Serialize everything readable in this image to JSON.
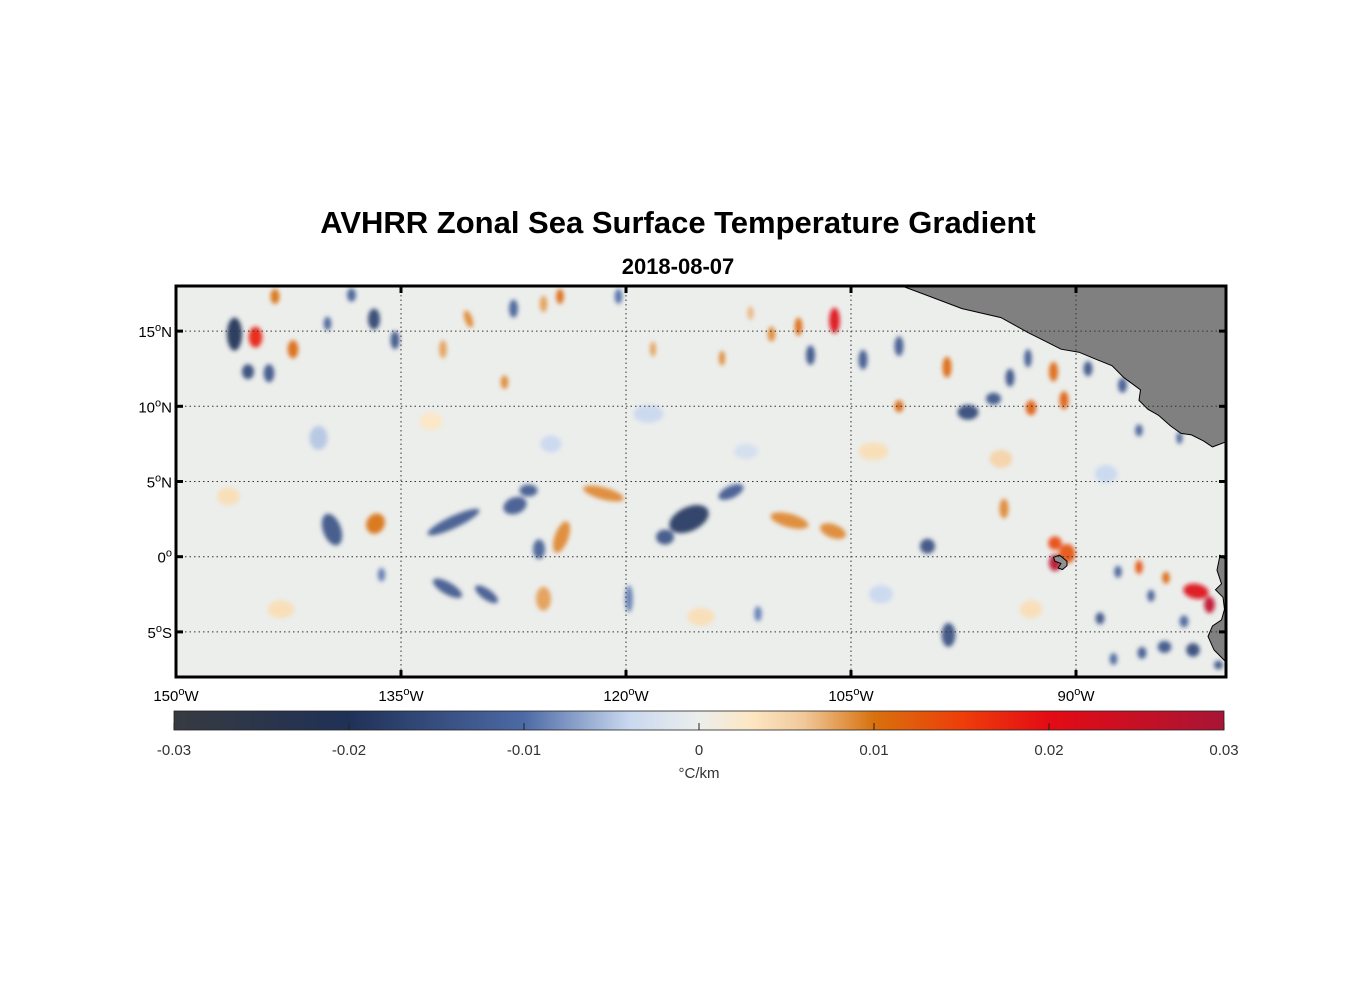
{
  "chart_data": {
    "type": "heatmap",
    "title": "AVHRR Zonal Sea Surface Temperature Gradient",
    "subtitle": "2018-08-07",
    "map": {
      "lon_range": [
        -150,
        -80
      ],
      "lat_range": [
        -8,
        18
      ],
      "x_ticks": [
        {
          "value": -150,
          "label": "150",
          "sup": "o",
          "hemi": "W"
        },
        {
          "value": -135,
          "label": "135",
          "sup": "o",
          "hemi": "W"
        },
        {
          "value": -120,
          "label": "120",
          "sup": "o",
          "hemi": "W"
        },
        {
          "value": -105,
          "label": "105",
          "sup": "o",
          "hemi": "W"
        },
        {
          "value": -90,
          "label": "90",
          "sup": "o",
          "hemi": "W"
        }
      ],
      "y_ticks": [
        {
          "value": 15,
          "label": "15",
          "sup": "o",
          "hemi": "N"
        },
        {
          "value": 10,
          "label": "10",
          "sup": "o",
          "hemi": "N"
        },
        {
          "value": 5,
          "label": "5",
          "sup": "o",
          "hemi": "N"
        },
        {
          "value": 0,
          "label": "0",
          "sup": "o",
          "hemi": ""
        },
        {
          "value": -5,
          "label": "5",
          "sup": "o",
          "hemi": "S"
        }
      ],
      "grid": true,
      "land_color": "#808080",
      "land": [
        {
          "name": "central-america",
          "coords": [
            [
              -101.6,
              18
            ],
            [
              -100,
              17.4
            ],
            [
              -97.6,
              16.5
            ],
            [
              -95,
              15.9
            ],
            [
              -93.2,
              14.9
            ],
            [
              -92,
              14.3
            ],
            [
              -91,
              13.8
            ],
            [
              -89.8,
              13.6
            ],
            [
              -88.6,
              13.1
            ],
            [
              -87.6,
              12.7
            ],
            [
              -86.8,
              11.9
            ],
            [
              -85.7,
              11.1
            ],
            [
              -85.8,
              10.4
            ],
            [
              -85.2,
              9.8
            ],
            [
              -84.5,
              9.4
            ],
            [
              -83.7,
              8.7
            ],
            [
              -83,
              8.2
            ],
            [
              -82.3,
              8.1
            ],
            [
              -81.5,
              7.7
            ],
            [
              -80.9,
              7.3
            ],
            [
              -80.1,
              7.6
            ],
            [
              -80,
              7.6
            ],
            [
              -80,
              18
            ]
          ],
          "color": "#808080"
        },
        {
          "name": "ecuador-peru",
          "coords": [
            [
              -80,
              -0.2
            ],
            [
              -80.4,
              0.1
            ],
            [
              -80.6,
              -0.9
            ],
            [
              -80.3,
              -1.8
            ],
            [
              -80.7,
              -2.2
            ],
            [
              -80.2,
              -2.7
            ],
            [
              -80.1,
              -3.5
            ],
            [
              -80.3,
              -4.2
            ],
            [
              -80.9,
              -4.6
            ],
            [
              -81.2,
              -5.3
            ],
            [
              -80.8,
              -6.2
            ],
            [
              -80,
              -7
            ],
            [
              -80,
              -0.2
            ]
          ],
          "color": "#808080"
        },
        {
          "name": "galapagos",
          "coords": [
            [
              -91.5,
              -0.05
            ],
            [
              -91.1,
              0.1
            ],
            [
              -90.6,
              -0.3
            ],
            [
              -90.6,
              -0.6
            ],
            [
              -90.9,
              -0.85
            ],
            [
              -91.2,
              -0.75
            ],
            [
              -91,
              -0.45
            ],
            [
              -91.4,
              -0.3
            ],
            [
              -91.5,
              -0.05
            ]
          ],
          "color": "#909090"
        }
      ]
    },
    "colorbar": {
      "label": "°C/km",
      "min": -0.03,
      "max": 0.03,
      "ticks": [
        {
          "value": -0.03,
          "label": "-0.03"
        },
        {
          "value": -0.02,
          "label": "-0.02"
        },
        {
          "value": -0.01,
          "label": "-0.01"
        },
        {
          "value": 0,
          "label": "0"
        },
        {
          "value": 0.01,
          "label": "0.01"
        },
        {
          "value": 0.02,
          "label": "0.02"
        },
        {
          "value": 0.03,
          "label": "0.03"
        }
      ],
      "colormap": [
        {
          "value": -0.03,
          "color": "#373a40"
        },
        {
          "value": -0.02,
          "color": "#1f3157"
        },
        {
          "value": -0.01,
          "color": "#4d6aa6"
        },
        {
          "value": -0.004,
          "color": "#c9d8ef"
        },
        {
          "value": 0,
          "color": "#eceeec"
        },
        {
          "value": 0.003,
          "color": "#fde7c3"
        },
        {
          "value": 0.006,
          "color": "#f0c89a"
        },
        {
          "value": 0.01,
          "color": "#d8710d"
        },
        {
          "value": 0.015,
          "color": "#ee3e0a"
        },
        {
          "value": 0.02,
          "color": "#e40b14"
        },
        {
          "value": 0.03,
          "color": "#a81535"
        }
      ]
    },
    "features": [
      {
        "lon": -146.1,
        "lat": 14.8,
        "value": -0.02,
        "w": 1.0,
        "h": 2.2,
        "angle": 0
      },
      {
        "lon": -144.7,
        "lat": 14.6,
        "value": 0.018,
        "w": 0.9,
        "h": 1.4,
        "angle": 0
      },
      {
        "lon": -145.2,
        "lat": 12.3,
        "value": -0.016,
        "w": 0.8,
        "h": 1.0,
        "angle": 0
      },
      {
        "lon": -143.8,
        "lat": 12.2,
        "value": -0.014,
        "w": 0.7,
        "h": 1.2,
        "angle": 0
      },
      {
        "lon": -142.2,
        "lat": 13.8,
        "value": 0.011,
        "w": 0.7,
        "h": 1.2,
        "angle": 0
      },
      {
        "lon": -143.4,
        "lat": 17.3,
        "value": 0.01,
        "w": 0.6,
        "h": 1.0,
        "angle": 0
      },
      {
        "lon": -139.9,
        "lat": 15.5,
        "value": -0.012,
        "w": 0.5,
        "h": 0.9,
        "angle": 0
      },
      {
        "lon": -138.3,
        "lat": 17.4,
        "value": -0.012,
        "w": 0.6,
        "h": 0.9,
        "angle": 0
      },
      {
        "lon": -136.8,
        "lat": 15.8,
        "value": -0.017,
        "w": 0.8,
        "h": 1.4,
        "angle": 0
      },
      {
        "lon": -135.4,
        "lat": 14.4,
        "value": -0.014,
        "w": 0.6,
        "h": 1.2,
        "angle": 0
      },
      {
        "lon": -132.2,
        "lat": 13.8,
        "value": 0.008,
        "w": 0.5,
        "h": 1.2,
        "angle": 0
      },
      {
        "lon": -130.5,
        "lat": 15.8,
        "value": 0.009,
        "w": 0.5,
        "h": 1.2,
        "angle": 20
      },
      {
        "lon": -127.5,
        "lat": 16.5,
        "value": -0.012,
        "w": 0.6,
        "h": 1.2,
        "angle": 0
      },
      {
        "lon": -125.5,
        "lat": 16.8,
        "value": 0.008,
        "w": 0.5,
        "h": 1.1,
        "angle": 0
      },
      {
        "lon": -124.4,
        "lat": 17.3,
        "value": 0.011,
        "w": 0.5,
        "h": 1.0,
        "angle": 0
      },
      {
        "lon": -128.1,
        "lat": 11.6,
        "value": 0.009,
        "w": 0.5,
        "h": 0.9,
        "angle": 0
      },
      {
        "lon": -120.5,
        "lat": 17.3,
        "value": -0.01,
        "w": 0.5,
        "h": 1.0,
        "angle": 0
      },
      {
        "lon": -118.2,
        "lat": 13.8,
        "value": 0.008,
        "w": 0.4,
        "h": 1.0,
        "angle": 0
      },
      {
        "lon": -113.6,
        "lat": 13.2,
        "value": 0.009,
        "w": 0.4,
        "h": 1.0,
        "angle": 0
      },
      {
        "lon": -111.7,
        "lat": 16.2,
        "value": 0.007,
        "w": 0.4,
        "h": 0.9,
        "angle": 0
      },
      {
        "lon": -110.3,
        "lat": 14.8,
        "value": 0.009,
        "w": 0.5,
        "h": 1.0,
        "angle": 0
      },
      {
        "lon": -108.5,
        "lat": 15.3,
        "value": 0.011,
        "w": 0.5,
        "h": 1.2,
        "angle": 0
      },
      {
        "lon": -107.7,
        "lat": 13.4,
        "value": -0.014,
        "w": 0.6,
        "h": 1.3,
        "angle": 0
      },
      {
        "lon": -106.1,
        "lat": 15.7,
        "value": 0.021,
        "w": 0.7,
        "h": 1.7,
        "angle": 0
      },
      {
        "lon": -104.2,
        "lat": 13.1,
        "value": -0.013,
        "w": 0.6,
        "h": 1.3,
        "angle": 0
      },
      {
        "lon": -101.8,
        "lat": 14.0,
        "value": -0.013,
        "w": 0.6,
        "h": 1.3,
        "angle": 0
      },
      {
        "lon": -98.6,
        "lat": 12.6,
        "value": 0.011,
        "w": 0.6,
        "h": 1.4,
        "angle": 0
      },
      {
        "lon": -101.8,
        "lat": 10.0,
        "value": 0.011,
        "w": 0.6,
        "h": 0.8,
        "angle": 0
      },
      {
        "lon": -97.2,
        "lat": 9.6,
        "value": -0.016,
        "w": 1.4,
        "h": 1.0,
        "angle": 0
      },
      {
        "lon": -95.5,
        "lat": 10.5,
        "value": -0.014,
        "w": 1.0,
        "h": 0.8,
        "angle": 0
      },
      {
        "lon": -94.4,
        "lat": 11.9,
        "value": -0.014,
        "w": 0.6,
        "h": 1.2,
        "angle": 0
      },
      {
        "lon": -93.2,
        "lat": 13.2,
        "value": -0.013,
        "w": 0.5,
        "h": 1.2,
        "angle": 0
      },
      {
        "lon": -93.0,
        "lat": 9.9,
        "value": 0.012,
        "w": 0.7,
        "h": 1.0,
        "angle": 0
      },
      {
        "lon": -91.5,
        "lat": 12.3,
        "value": 0.011,
        "w": 0.6,
        "h": 1.3,
        "angle": 0
      },
      {
        "lon": -90.8,
        "lat": 10.4,
        "value": 0.012,
        "w": 0.6,
        "h": 1.2,
        "angle": 0
      },
      {
        "lon": -89.2,
        "lat": 12.5,
        "value": -0.014,
        "w": 0.6,
        "h": 1.0,
        "angle": 0
      },
      {
        "lon": -86.9,
        "lat": 11.4,
        "value": -0.013,
        "w": 0.6,
        "h": 1.0,
        "angle": 0
      },
      {
        "lon": -85.8,
        "lat": 8.4,
        "value": -0.012,
        "w": 0.5,
        "h": 0.8,
        "angle": 0
      },
      {
        "lon": -83.1,
        "lat": 7.9,
        "value": -0.013,
        "w": 0.4,
        "h": 0.8,
        "angle": 0
      },
      {
        "lon": -94.8,
        "lat": 3.2,
        "value": 0.009,
        "w": 0.6,
        "h": 1.3,
        "angle": 0
      },
      {
        "lon": -139.6,
        "lat": 1.8,
        "value": -0.014,
        "w": 1.2,
        "h": 2.2,
        "angle": 20
      },
      {
        "lon": -136.7,
        "lat": 2.2,
        "value": 0.01,
        "w": 1.2,
        "h": 1.4,
        "angle": -30
      },
      {
        "lon": -131.5,
        "lat": 2.3,
        "value": -0.013,
        "w": 3.8,
        "h": 0.8,
        "angle": 25
      },
      {
        "lon": -127.4,
        "lat": 3.4,
        "value": -0.013,
        "w": 1.6,
        "h": 1.1,
        "angle": 20
      },
      {
        "lon": -126.5,
        "lat": 4.4,
        "value": -0.013,
        "w": 1.2,
        "h": 0.8,
        "angle": 0
      },
      {
        "lon": -124.3,
        "lat": 1.3,
        "value": 0.009,
        "w": 0.9,
        "h": 2.2,
        "angle": -20
      },
      {
        "lon": -125.8,
        "lat": 0.5,
        "value": -0.012,
        "w": 0.8,
        "h": 1.3,
        "angle": 0
      },
      {
        "lon": -121.5,
        "lat": 4.2,
        "value": 0.009,
        "w": 2.8,
        "h": 0.8,
        "angle": -15
      },
      {
        "lon": -115.8,
        "lat": 2.5,
        "value": -0.019,
        "w": 2.8,
        "h": 1.6,
        "angle": 25
      },
      {
        "lon": -113.0,
        "lat": 4.3,
        "value": -0.013,
        "w": 1.8,
        "h": 0.8,
        "angle": 25
      },
      {
        "lon": -117.4,
        "lat": 1.3,
        "value": -0.014,
        "w": 1.2,
        "h": 1.0,
        "angle": 0
      },
      {
        "lon": -109.1,
        "lat": 2.4,
        "value": 0.009,
        "w": 2.6,
        "h": 0.9,
        "angle": -15
      },
      {
        "lon": -106.2,
        "lat": 1.7,
        "value": 0.009,
        "w": 1.8,
        "h": 0.9,
        "angle": -20
      },
      {
        "lon": -99.9,
        "lat": 0.7,
        "value": -0.015,
        "w": 1.0,
        "h": 1.0,
        "angle": 0
      },
      {
        "lon": -91.4,
        "lat": 0.9,
        "value": 0.014,
        "w": 0.9,
        "h": 0.9,
        "angle": 0
      },
      {
        "lon": -90.6,
        "lat": 0.2,
        "value": 0.013,
        "w": 1.1,
        "h": 1.3,
        "angle": 0
      },
      {
        "lon": -91.4,
        "lat": -0.4,
        "value": 0.027,
        "w": 0.8,
        "h": 1.1,
        "angle": 0
      },
      {
        "lon": -131.9,
        "lat": -2.1,
        "value": -0.013,
        "w": 2.2,
        "h": 0.8,
        "angle": -30
      },
      {
        "lon": -129.3,
        "lat": -2.5,
        "value": -0.013,
        "w": 1.8,
        "h": 0.7,
        "angle": -35
      },
      {
        "lon": -125.5,
        "lat": -2.8,
        "value": 0.008,
        "w": 1.0,
        "h": 1.6,
        "angle": 0
      },
      {
        "lon": -136.3,
        "lat": -1.2,
        "value": -0.009,
        "w": 0.5,
        "h": 0.9,
        "angle": 0
      },
      {
        "lon": -119.8,
        "lat": -2.8,
        "value": -0.009,
        "w": 0.5,
        "h": 1.8,
        "angle": 0
      },
      {
        "lon": -111.2,
        "lat": -3.8,
        "value": -0.009,
        "w": 0.5,
        "h": 1.0,
        "angle": 0
      },
      {
        "lon": -98.5,
        "lat": -5.2,
        "value": -0.015,
        "w": 0.9,
        "h": 1.6,
        "angle": 0
      },
      {
        "lon": -87.2,
        "lat": -1.0,
        "value": -0.012,
        "w": 0.5,
        "h": 0.8,
        "angle": 0
      },
      {
        "lon": -85.8,
        "lat": -0.7,
        "value": 0.013,
        "w": 0.5,
        "h": 0.9,
        "angle": 0
      },
      {
        "lon": -85.0,
        "lat": -2.6,
        "value": -0.012,
        "w": 0.5,
        "h": 0.8,
        "angle": 0
      },
      {
        "lon": -84.0,
        "lat": -1.4,
        "value": 0.011,
        "w": 0.5,
        "h": 0.8,
        "angle": 0
      },
      {
        "lon": -82.0,
        "lat": -2.3,
        "value": 0.021,
        "w": 1.7,
        "h": 1.0,
        "angle": -10
      },
      {
        "lon": -81.1,
        "lat": -3.2,
        "value": 0.026,
        "w": 0.7,
        "h": 1.1,
        "angle": 0
      },
      {
        "lon": -82.8,
        "lat": -4.3,
        "value": -0.011,
        "w": 0.6,
        "h": 0.8,
        "angle": 0
      },
      {
        "lon": -88.4,
        "lat": -4.1,
        "value": -0.014,
        "w": 0.6,
        "h": 0.8,
        "angle": 0
      },
      {
        "lon": -84.1,
        "lat": -6.0,
        "value": -0.014,
        "w": 0.9,
        "h": 0.8,
        "angle": 0
      },
      {
        "lon": -82.2,
        "lat": -6.2,
        "value": -0.016,
        "w": 0.9,
        "h": 0.9,
        "angle": 0
      },
      {
        "lon": -85.6,
        "lat": -6.4,
        "value": -0.013,
        "w": 0.6,
        "h": 0.8,
        "angle": 0
      },
      {
        "lon": -80.5,
        "lat": -7.2,
        "value": -0.014,
        "w": 0.6,
        "h": 0.6,
        "angle": 0
      },
      {
        "lon": -87.5,
        "lat": -6.8,
        "value": -0.011,
        "w": 0.5,
        "h": 0.8,
        "angle": 0
      },
      {
        "lon": -140.5,
        "lat": 7.9,
        "value": -0.005,
        "w": 1.2,
        "h": 1.6,
        "angle": 0
      },
      {
        "lon": -118.5,
        "lat": 9.5,
        "value": -0.004,
        "w": 2.0,
        "h": 1.2,
        "angle": 0
      },
      {
        "lon": -103.5,
        "lat": 7.0,
        "value": 0.004,
        "w": 2.0,
        "h": 1.2,
        "angle": 0
      },
      {
        "lon": -146.5,
        "lat": 4.0,
        "value": 0.004,
        "w": 1.5,
        "h": 1.2,
        "angle": 0
      },
      {
        "lon": -133.0,
        "lat": 9.0,
        "value": 0.003,
        "w": 1.5,
        "h": 1.2,
        "angle": 0
      },
      {
        "lon": -125.0,
        "lat": 7.5,
        "value": -0.004,
        "w": 1.4,
        "h": 1.1,
        "angle": 0
      },
      {
        "lon": -112.0,
        "lat": 7.0,
        "value": -0.003,
        "w": 1.6,
        "h": 1.0,
        "angle": 0
      },
      {
        "lon": -95.0,
        "lat": 6.5,
        "value": 0.005,
        "w": 1.5,
        "h": 1.2,
        "angle": 0
      },
      {
        "lon": -88.0,
        "lat": 5.5,
        "value": -0.004,
        "w": 1.5,
        "h": 1.2,
        "angle": 0
      },
      {
        "lon": -143.0,
        "lat": -3.5,
        "value": 0.004,
        "w": 1.8,
        "h": 1.2,
        "angle": 0
      },
      {
        "lon": -115.0,
        "lat": -4.0,
        "value": 0.004,
        "w": 1.8,
        "h": 1.2,
        "angle": 0
      },
      {
        "lon": -103.0,
        "lat": -2.5,
        "value": -0.004,
        "w": 1.6,
        "h": 1.2,
        "angle": 0
      },
      {
        "lon": -93.0,
        "lat": -3.5,
        "value": 0.004,
        "w": 1.5,
        "h": 1.2,
        "angle": 0
      }
    ]
  }
}
